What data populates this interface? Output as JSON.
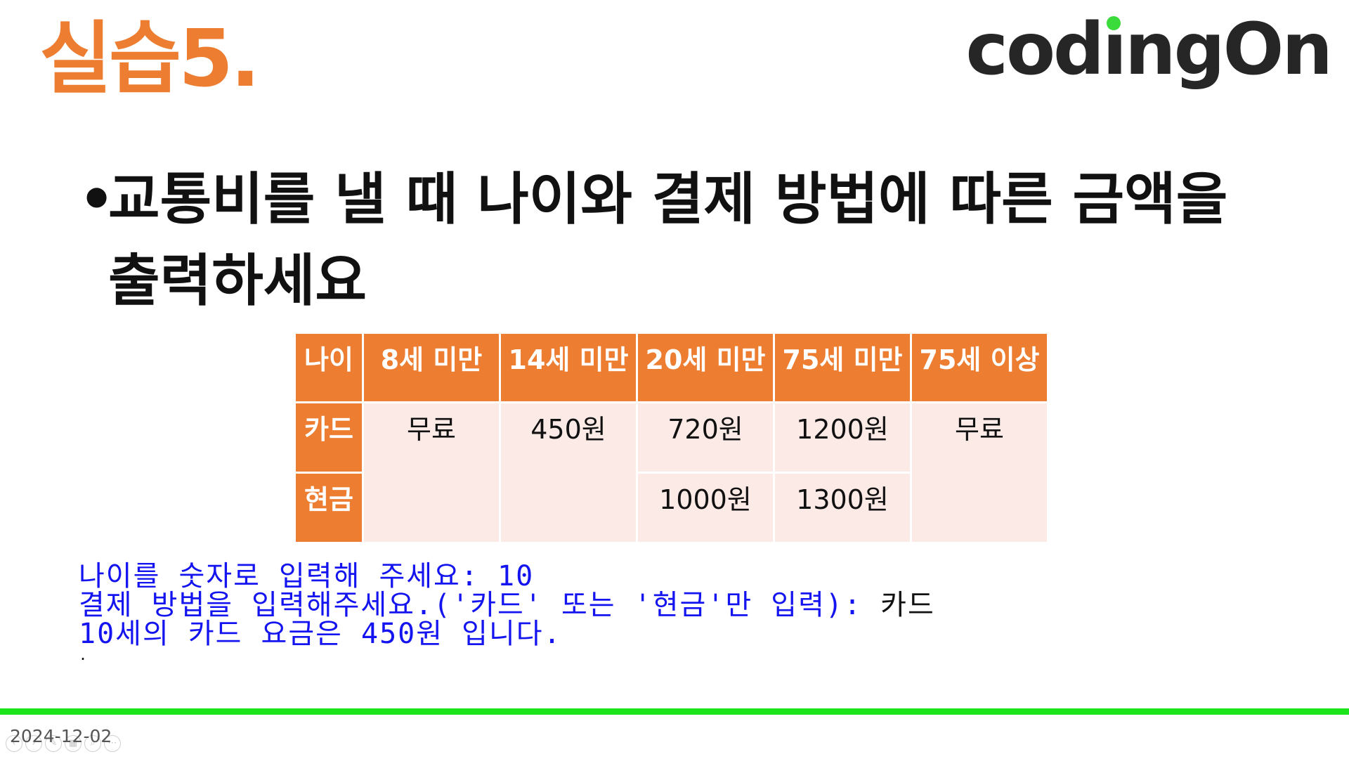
{
  "slide": {
    "title": "실습5.",
    "logo_text_a": "cod",
    "logo_text_b": "ngO",
    "logo_text_c": "n",
    "bullet_line1": "교통비를 낼 때 나이와 결제 방법에 따른 금액을",
    "bullet_line2": "출력하세요",
    "date": "2024-12-02"
  },
  "table": {
    "header": [
      "나이",
      "8세 미만",
      "14세 미만",
      "20세 미만",
      "75세 미만",
      "75세 이상"
    ],
    "rows": [
      {
        "label": "카드",
        "cells": [
          "무료",
          "450원",
          "720원",
          "1200원",
          "무료"
        ]
      },
      {
        "label": "현금",
        "cells": [
          "1000원",
          "1300원"
        ]
      }
    ]
  },
  "console": {
    "line1": "나이를 숫자로 입력해 주세요: 10",
    "line2_prompt": "결제 방법을 입력해주세요.('카드' 또는 '현금'만 입력): ",
    "line2_input": "카드",
    "line3": "10세의 카드 요금은 450원 입니다."
  },
  "colors": {
    "accent": "#ED7D31",
    "header_fill": "#ED7D31",
    "cell_fill": "#FBEAE6",
    "console_text": "#1414F0",
    "bar": "#1BE41B",
    "logo_green": "#3ADB3A"
  },
  "toolbar_icons": [
    "prev-icon",
    "next-icon",
    "pen-icon",
    "slides-icon",
    "zoom-icon",
    "more-icon"
  ]
}
